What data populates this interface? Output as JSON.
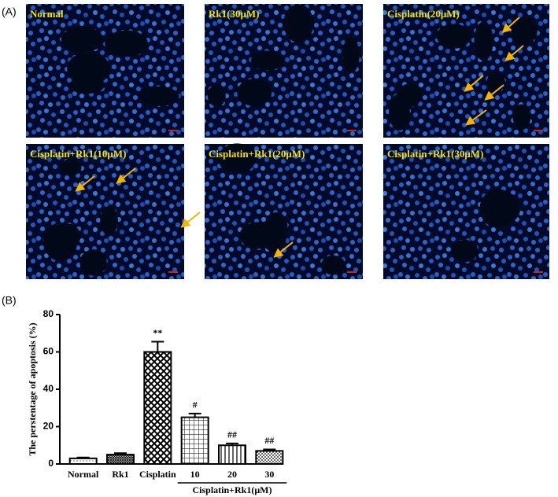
{
  "panel_labels": [
    "(A)",
    "(B)"
  ],
  "images": [
    {
      "label": "Normal"
    },
    {
      "label": "Rk1(30μM)"
    },
    {
      "label": "Cisplatin(20μM)"
    },
    {
      "label": "Cisplatin+Rk1(10μM)"
    },
    {
      "label": "Cisplatin+Rk1(20μM)"
    },
    {
      "label": "Cisplatin+Rk1(30μM)"
    }
  ],
  "chart_data": {
    "type": "bar",
    "y_label": "The perstentage of apoptosis (%)",
    "categories": [
      "Normal",
      "Rk1",
      "Cisplatin",
      "10",
      "20",
      "30"
    ],
    "values": [
      3,
      5,
      60,
      25,
      10,
      7
    ],
    "errors": [
      0.5,
      0.8,
      5.5,
      2,
      1,
      0.8
    ],
    "value_annotations": [
      null,
      null,
      "**",
      "#",
      "##",
      "##"
    ],
    "group_label": "Cisplatin+Rk1(μM)",
    "ylim": [
      0,
      80
    ],
    "yticks": [
      0,
      20,
      40,
      60,
      80
    ],
    "color": "#000000"
  }
}
